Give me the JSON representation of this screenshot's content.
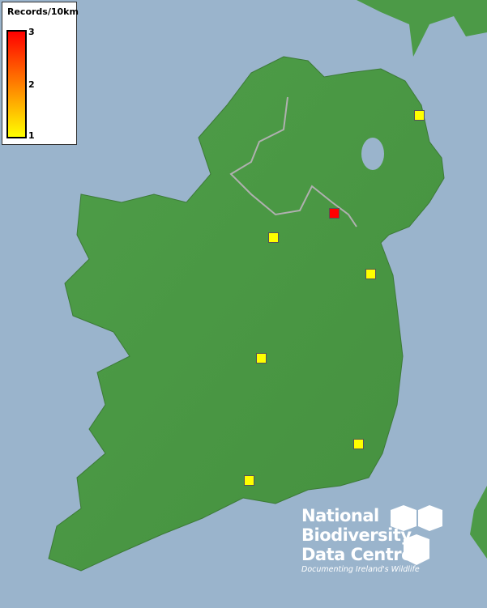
{
  "legend": {
    "title": "Records/10km",
    "ticks": [
      "3",
      "2",
      "1"
    ],
    "max_color": "#ff0000",
    "mid_color": "#ff8c00",
    "min_color": "#ffff00"
  },
  "records": [
    {
      "value": 1
    },
    {
      "value": 3
    },
    {
      "value": 1
    },
    {
      "value": 1
    },
    {
      "value": 1
    },
    {
      "value": 1
    },
    {
      "value": 1
    }
  ],
  "logo": {
    "line1": "National",
    "line2": "Biodiversity",
    "line3": "Data Centre",
    "tagline": "Documenting Ireland's Wildlife"
  },
  "colors": {
    "sea": "#9ab4cc",
    "land": "#4c9a47",
    "border": "#b0b0b0"
  }
}
